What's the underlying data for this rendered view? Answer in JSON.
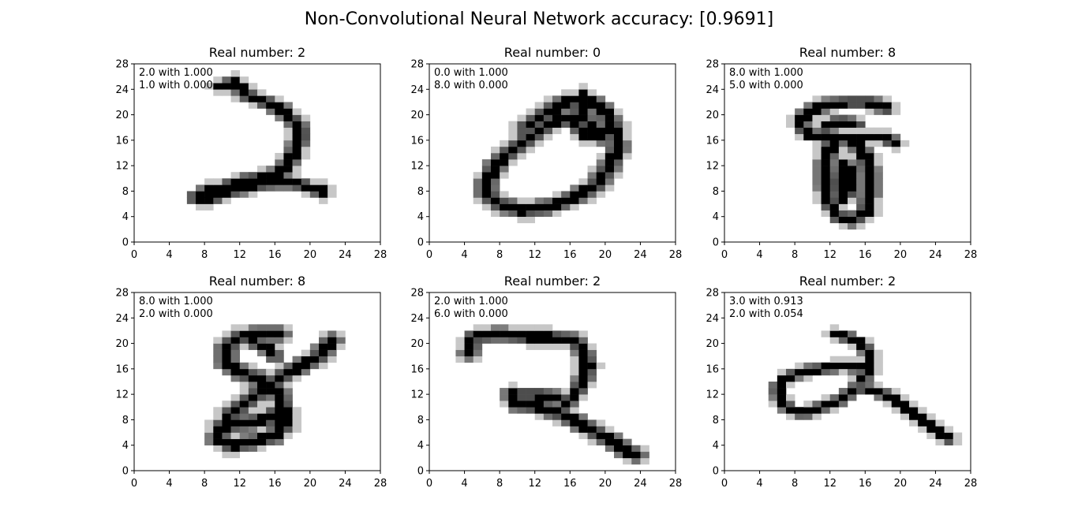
{
  "figure": {
    "suptitle": "Non-Convolutional Neural Network accuracy: [0.9691]"
  },
  "chart_data": [
    {
      "type": "heatmap",
      "title": "Real number: 2",
      "real_label": 2,
      "predictions": [
        "2.0 with 1.000",
        "1.0 with 0.000"
      ],
      "xlim": [
        0,
        28
      ],
      "ylim": [
        0,
        28
      ],
      "xticks": [
        "0",
        "4",
        "8",
        "12",
        "16",
        "20",
        "24",
        "28"
      ],
      "yticks": [
        "0",
        "4",
        "8",
        "12",
        "16",
        "20",
        "24",
        "28"
      ],
      "colormap": "gray_r",
      "strokes": [
        {
          "w": 1.0,
          "pts": [
            [
              10.0,
              24.5
            ],
            [
              11.5,
              25.0
            ],
            [
              13.0,
              23.0
            ],
            [
              15.0,
              22.0
            ],
            [
              16.5,
              21.0
            ],
            [
              17.5,
              20.0
            ],
            [
              18.5,
              18.5
            ],
            [
              19.0,
              17.0
            ],
            [
              18.5,
              15.0
            ],
            [
              18.0,
              13.5
            ],
            [
              17.0,
              11.5
            ],
            [
              16.0,
              10.5
            ],
            [
              14.0,
              10.0
            ],
            [
              12.0,
              9.5
            ],
            [
              10.0,
              8.5
            ],
            [
              8.5,
              8.0
            ],
            [
              7.0,
              7.0
            ],
            [
              8.0,
              6.5
            ],
            [
              10.0,
              7.5
            ],
            [
              12.0,
              8.5
            ],
            [
              14.0,
              9.0
            ],
            [
              16.0,
              9.5
            ],
            [
              18.0,
              9.5
            ],
            [
              20.0,
              8.5
            ],
            [
              21.5,
              8.0
            ]
          ]
        }
      ]
    },
    {
      "type": "heatmap",
      "title": "Real number: 0",
      "real_label": 0,
      "predictions": [
        "0.0 with 1.000",
        "8.0 with 0.000"
      ],
      "xlim": [
        0,
        28
      ],
      "ylim": [
        0,
        28
      ],
      "xticks": [
        "0",
        "4",
        "8",
        "12",
        "16",
        "20",
        "24",
        "28"
      ],
      "yticks": [
        "0",
        "4",
        "8",
        "12",
        "16",
        "20",
        "24",
        "28"
      ],
      "colormap": "gray_r",
      "strokes": [
        {
          "w": 1.1,
          "pts": [
            [
              16.5,
              19.0
            ],
            [
              15.0,
              19.5
            ],
            [
              13.0,
              18.0
            ],
            [
              11.0,
              16.0
            ],
            [
              9.0,
              14.0
            ],
            [
              7.5,
              12.0
            ],
            [
              6.5,
              9.5
            ],
            [
              6.5,
              7.5
            ],
            [
              8.0,
              6.0
            ],
            [
              10.5,
              5.0
            ],
            [
              13.5,
              5.5
            ],
            [
              16.5,
              7.0
            ],
            [
              19.0,
              9.0
            ],
            [
              20.5,
              12.0
            ],
            [
              21.5,
              15.0
            ],
            [
              21.0,
              18.0
            ],
            [
              20.0,
              20.5
            ],
            [
              18.0,
              22.5
            ],
            [
              15.5,
              22.0
            ],
            [
              13.5,
              20.5
            ],
            [
              11.0,
              18.0
            ]
          ]
        },
        {
          "w": 1.0,
          "pts": [
            [
              16.5,
              19.5
            ],
            [
              17.5,
              17.0
            ],
            [
              19.5,
              16.5
            ],
            [
              18.5,
              18.5
            ],
            [
              17.0,
              19.5
            ]
          ]
        },
        {
          "w": 0.9,
          "pts": [
            [
              17.0,
              19.5
            ],
            [
              17.5,
              23.5
            ]
          ]
        }
      ]
    },
    {
      "type": "heatmap",
      "title": "Real number: 8",
      "real_label": 8,
      "predictions": [
        "8.0 with 1.000",
        "5.0 with 0.000"
      ],
      "xlim": [
        0,
        28
      ],
      "ylim": [
        0,
        28
      ],
      "xticks": [
        "0",
        "4",
        "8",
        "12",
        "16",
        "20",
        "24",
        "28"
      ],
      "yticks": [
        "0",
        "4",
        "8",
        "12",
        "16",
        "20",
        "24",
        "28"
      ],
      "colormap": "gray_r",
      "strokes": [
        {
          "w": 0.9,
          "pts": [
            [
              18.5,
              21.0
            ],
            [
              16.5,
              22.0
            ],
            [
              14.0,
              22.0
            ],
            [
              11.5,
              21.5
            ],
            [
              9.5,
              20.5
            ],
            [
              8.5,
              18.5
            ],
            [
              9.5,
              17.0
            ],
            [
              12.0,
              16.0
            ],
            [
              15.0,
              16.5
            ],
            [
              18.0,
              16.5
            ],
            [
              19.5,
              15.5
            ]
          ]
        },
        {
          "w": 0.9,
          "pts": [
            [
              15.0,
              18.5
            ],
            [
              13.0,
              19.0
            ],
            [
              11.5,
              18.0
            ]
          ]
        },
        {
          "w": 1.0,
          "pts": [
            [
              12.5,
              16.0
            ],
            [
              11.5,
              13.0
            ],
            [
              11.5,
              9.0
            ],
            [
              12.0,
              6.0
            ],
            [
              13.0,
              4.0
            ],
            [
              14.5,
              3.5
            ],
            [
              16.0,
              4.5
            ],
            [
              16.5,
              7.5
            ],
            [
              16.5,
              11.0
            ],
            [
              16.0,
              13.5
            ],
            [
              15.0,
              15.5
            ]
          ]
        },
        {
          "w": 1.0,
          "pts": [
            [
              13.5,
              12.0
            ],
            [
              13.0,
              9.0
            ],
            [
              13.5,
              7.0
            ],
            [
              14.5,
              8.5
            ],
            [
              14.5,
              11.0
            ],
            [
              13.5,
              12.0
            ]
          ]
        }
      ]
    },
    {
      "type": "heatmap",
      "title": "Real number: 8",
      "real_label": 8,
      "predictions": [
        "8.0 with 1.000",
        "2.0 with 0.000"
      ],
      "xlim": [
        0,
        28
      ],
      "ylim": [
        0,
        28
      ],
      "xticks": [
        "0",
        "4",
        "8",
        "12",
        "16",
        "20",
        "24",
        "28"
      ],
      "yticks": [
        "0",
        "4",
        "8",
        "12",
        "16",
        "20",
        "24",
        "28"
      ],
      "colormap": "gray_r",
      "strokes": [
        {
          "w": 1.1,
          "pts": [
            [
              16.5,
              21.5
            ],
            [
              14.0,
              21.5
            ],
            [
              12.0,
              21.0
            ],
            [
              10.5,
              19.5
            ],
            [
              10.5,
              17.0
            ],
            [
              12.0,
              15.5
            ],
            [
              14.0,
              14.5
            ],
            [
              15.5,
              13.5
            ],
            [
              16.5,
              12.0
            ],
            [
              17.0,
              9.5
            ],
            [
              17.0,
              7.0
            ],
            [
              16.0,
              5.5
            ],
            [
              13.5,
              4.5
            ],
            [
              11.0,
              4.0
            ],
            [
              9.5,
              5.0
            ],
            [
              10.0,
              7.0
            ],
            [
              12.5,
              7.5
            ],
            [
              15.0,
              8.0
            ],
            [
              16.5,
              9.5
            ]
          ]
        },
        {
          "w": 1.1,
          "pts": [
            [
              15.5,
              13.0
            ],
            [
              14.0,
              12.0
            ],
            [
              12.5,
              10.5
            ],
            [
              11.0,
              9.0
            ],
            [
              10.5,
              7.0
            ]
          ]
        },
        {
          "w": 1.1,
          "pts": [
            [
              15.5,
              13.5
            ],
            [
              17.0,
              15.0
            ],
            [
              19.0,
              16.5
            ],
            [
              21.0,
              18.0
            ],
            [
              22.5,
              20.5
            ]
          ]
        },
        {
          "w": 0.9,
          "pts": [
            [
              13.0,
              20.5
            ],
            [
              15.0,
              19.5
            ],
            [
              16.0,
              18.0
            ]
          ]
        }
      ]
    },
    {
      "type": "heatmap",
      "title": "Real number: 2",
      "real_label": 2,
      "predictions": [
        "2.0 with 1.000",
        "6.0 with 0.000"
      ],
      "xlim": [
        0,
        28
      ],
      "ylim": [
        0,
        28
      ],
      "xticks": [
        "0",
        "4",
        "8",
        "12",
        "16",
        "20",
        "24",
        "28"
      ],
      "yticks": [
        "0",
        "4",
        "8",
        "12",
        "16",
        "20",
        "24",
        "28"
      ],
      "colormap": "gray_r",
      "strokes": [
        {
          "w": 1.0,
          "pts": [
            [
              4.5,
              18.5
            ],
            [
              5.0,
              21.0
            ],
            [
              8.0,
              21.5
            ],
            [
              11.0,
              21.0
            ],
            [
              14.0,
              21.0
            ],
            [
              16.5,
              20.5
            ],
            [
              17.5,
              19.0
            ],
            [
              18.0,
              16.5
            ],
            [
              17.5,
              14.0
            ],
            [
              16.5,
              12.0
            ],
            [
              15.5,
              10.5
            ]
          ]
        },
        {
          "w": 1.1,
          "pts": [
            [
              9.5,
              12.0
            ],
            [
              10.0,
              10.5
            ],
            [
              12.5,
              10.0
            ],
            [
              15.0,
              9.0
            ],
            [
              17.0,
              7.5
            ],
            [
              19.0,
              6.0
            ],
            [
              21.0,
              4.5
            ],
            [
              22.5,
              3.0
            ],
            [
              23.5,
              2.5
            ]
          ]
        },
        {
          "w": 0.9,
          "pts": [
            [
              10.0,
              12.0
            ],
            [
              12.5,
              12.0
            ],
            [
              14.5,
              11.5
            ]
          ]
        }
      ]
    },
    {
      "type": "heatmap",
      "title": "Real number: 2",
      "real_label": 2,
      "predictions": [
        "3.0 with 0.913",
        "2.0 with 0.054"
      ],
      "xlim": [
        0,
        28
      ],
      "ylim": [
        0,
        28
      ],
      "xticks": [
        "0",
        "4",
        "8",
        "12",
        "16",
        "20",
        "24",
        "28"
      ],
      "yticks": [
        "0",
        "4",
        "8",
        "12",
        "16",
        "20",
        "24",
        "28"
      ],
      "colormap": "gray_r",
      "strokes": [
        {
          "w": 0.8,
          "pts": [
            [
              12.5,
              21.5
            ],
            [
              14.0,
              21.0
            ],
            [
              15.5,
              20.0
            ],
            [
              16.5,
              18.5
            ],
            [
              16.5,
              16.0
            ],
            [
              15.5,
              14.0
            ]
          ]
        },
        {
          "w": 0.8,
          "pts": [
            [
              16.0,
              16.0
            ],
            [
              13.5,
              16.5
            ],
            [
              11.0,
              16.0
            ],
            [
              8.5,
              15.5
            ],
            [
              7.0,
              14.5
            ],
            [
              6.0,
              13.0
            ],
            [
              6.5,
              11.0
            ],
            [
              7.5,
              9.5
            ],
            [
              9.0,
              9.0
            ],
            [
              11.0,
              10.0
            ],
            [
              13.0,
              11.0
            ],
            [
              15.0,
              13.0
            ]
          ]
        },
        {
          "w": 0.8,
          "pts": [
            [
              15.5,
              13.0
            ],
            [
              17.5,
              12.5
            ],
            [
              19.5,
              11.0
            ],
            [
              21.0,
              9.5
            ],
            [
              22.5,
              8.0
            ],
            [
              24.0,
              6.5
            ],
            [
              25.5,
              5.0
            ]
          ]
        }
      ]
    }
  ]
}
